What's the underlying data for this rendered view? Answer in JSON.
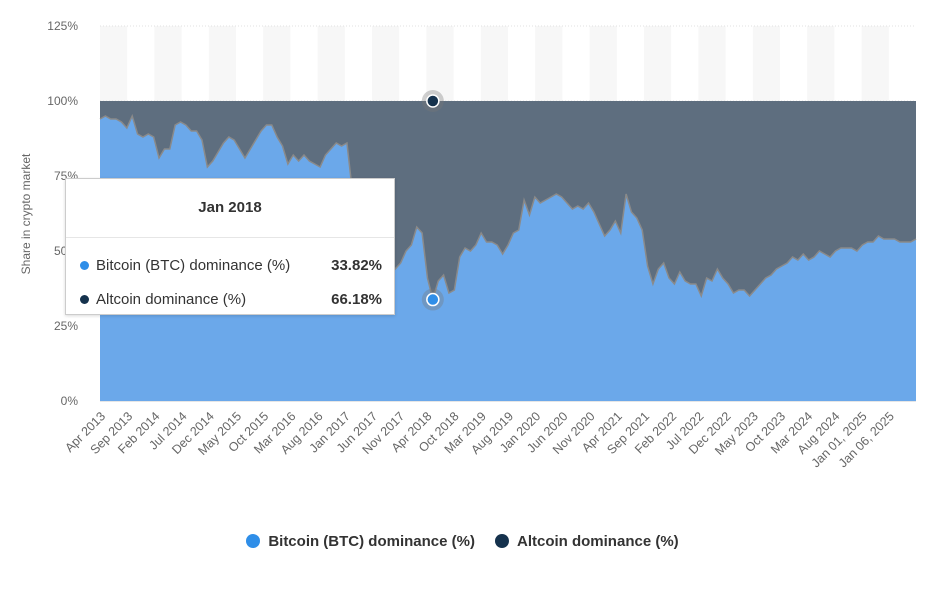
{
  "colors": {
    "btc": "#6ba8ea",
    "btc_legend": "#2f8ee8",
    "alt": "#5e6e7f",
    "alt_legend": "#15324d",
    "btc_line": "#8a8a8a"
  },
  "chart_data": {
    "type": "area",
    "stacking": "percent",
    "ylabel": "Share in crypto market",
    "ylim": [
      0,
      125
    ],
    "yticks": [
      "0%",
      "25%",
      "50%",
      "75%",
      "100%",
      "125%"
    ],
    "xticks": [
      "Apr 2013",
      "Sep 2013",
      "Feb 2014",
      "Jul 2014",
      "Dec 2014",
      "May 2015",
      "Oct 2015",
      "Mar 2016",
      "Aug 2016",
      "Jan 2017",
      "Jun 2017",
      "Nov 2017",
      "Apr 2018",
      "Oct 2018",
      "Mar 2019",
      "Aug 2019",
      "Jan 2020",
      "Jun 2020",
      "Nov 2020",
      "Apr 2021",
      "Sep 2021",
      "Feb 2022",
      "Jul 2022",
      "Dec 2022",
      "May 2023",
      "Oct 2023",
      "Mar 2024",
      "Aug 2024",
      "Jan 01, 2025",
      "Jan 06, 2025"
    ],
    "series": [
      {
        "name": "Bitcoin (BTC) dominance (%)",
        "values": [
          94,
          95,
          94,
          94,
          93,
          91,
          95,
          89,
          88,
          89,
          88,
          81,
          84,
          84,
          92,
          93,
          92,
          90,
          90,
          87,
          78,
          80,
          83,
          86,
          88,
          87,
          84,
          81,
          84,
          87,
          90,
          92,
          92,
          88,
          85,
          79,
          82,
          80,
          82,
          80,
          79,
          78,
          82,
          84,
          86,
          85,
          86,
          70,
          62,
          55,
          45,
          50,
          46,
          46,
          47,
          44,
          46,
          50,
          52,
          58,
          56,
          41,
          33.82,
          40,
          42,
          36,
          37,
          48,
          51,
          50,
          52,
          56,
          53,
          53,
          52,
          49,
          52,
          56,
          57,
          67,
          62,
          68,
          66,
          67,
          68,
          69,
          68,
          66,
          64,
          65,
          64,
          66,
          63,
          59,
          55,
          57,
          60,
          56,
          69,
          63,
          61,
          57,
          45,
          39,
          44,
          46,
          41,
          39,
          43,
          40,
          39,
          39,
          35,
          41,
          40,
          44,
          41,
          39,
          36,
          37,
          37,
          35,
          37,
          39,
          41,
          42,
          44,
          45,
          46,
          48,
          47,
          49,
          47,
          48,
          50,
          49,
          48,
          50,
          51,
          51,
          51,
          50,
          52,
          53,
          53,
          55,
          54,
          54,
          54,
          53,
          53,
          53,
          54
        ]
      },
      {
        "name": "Altcoin dominance (%)",
        "derived": "100 - Bitcoin (BTC) dominance (%)"
      }
    ],
    "grid": true,
    "legend_position": "bottom"
  },
  "legend": [
    {
      "label": "Bitcoin (BTC) dominance (%)"
    },
    {
      "label": "Altcoin dominance (%)"
    }
  ],
  "tooltip": {
    "title": "Jan 2018",
    "rows": [
      {
        "label": "Bitcoin (BTC) dominance (%)",
        "value": "33.82%"
      },
      {
        "label": "Altcoin dominance (%)",
        "value": "66.18%"
      }
    ]
  }
}
